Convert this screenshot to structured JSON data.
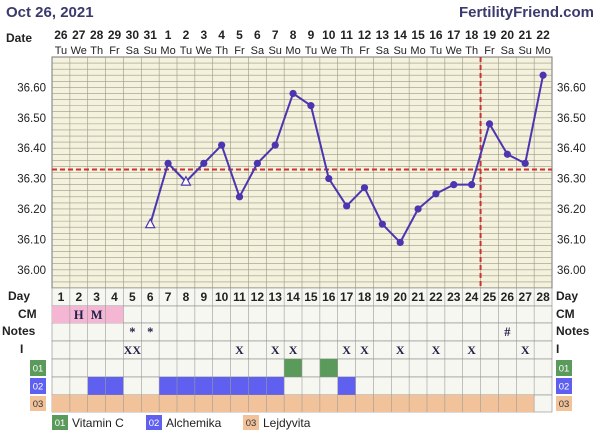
{
  "header": {
    "date": "Oct 26, 2021",
    "site": "FertilityFriend.com",
    "date_label": "Date"
  },
  "row_labels": {
    "day": "Day",
    "cm": "CM",
    "notes": "Notes",
    "i": "I"
  },
  "chart_data": {
    "type": "line",
    "title": "",
    "dates": [
      "26",
      "27",
      "28",
      "29",
      "30",
      "31",
      "1",
      "2",
      "3",
      "4",
      "5",
      "6",
      "7",
      "8",
      "9",
      "10",
      "11",
      "12",
      "13",
      "14",
      "15",
      "16",
      "17",
      "18",
      "19",
      "20",
      "21",
      "22"
    ],
    "weekdays": [
      "Tu",
      "We",
      "Th",
      "Fr",
      "Sa",
      "Su",
      "Mo",
      "Tu",
      "We",
      "Th",
      "Fr",
      "Sa",
      "Su",
      "Mo",
      "Tu",
      "We",
      "Th",
      "Fr",
      "Sa",
      "Su",
      "Mo",
      "Tu",
      "We",
      "Th",
      "Fr",
      "Sa",
      "Su",
      "Mo"
    ],
    "cycle_days": [
      "1",
      "2",
      "3",
      "4",
      "5",
      "6",
      "7",
      "8",
      "9",
      "10",
      "11",
      "12",
      "13",
      "14",
      "15",
      "16",
      "17",
      "18",
      "19",
      "20",
      "21",
      "22",
      "23",
      "24",
      "25",
      "26",
      "27",
      "28"
    ],
    "y_ticks": [
      "36.00",
      "36.10",
      "36.20",
      "36.30",
      "36.40",
      "36.50",
      "36.60"
    ],
    "ylim": [
      35.94,
      36.7
    ],
    "series": [
      {
        "values": [
          null,
          null,
          null,
          null,
          null,
          36.15,
          36.35,
          36.29,
          36.35,
          36.41,
          36.24,
          36.35,
          36.41,
          36.58,
          36.54,
          36.3,
          36.21,
          36.27,
          36.15,
          36.09,
          36.2,
          36.25,
          36.28,
          36.28,
          36.48,
          36.38,
          36.35,
          36.64
        ],
        "open_markers": [
          6,
          8
        ],
        "color": "#4b36b0"
      }
    ],
    "coverline": 36.33,
    "ovulation_day": 24,
    "coverline_color": "#cc3333",
    "grid": true
  },
  "cm_row": [
    "H",
    "M"
  ],
  "cm_pink_days": [
    1,
    2,
    3,
    4
  ],
  "notes_row": {
    "5": "*",
    "6": "*",
    "26": "#"
  },
  "i_row": {
    "5": "XX",
    "11": "X",
    "13": "X",
    "14": "X",
    "17": "X",
    "18": "X",
    "20": "X",
    "22": "X",
    "24": "X",
    "27": "X"
  },
  "supplements": {
    "rows": [
      {
        "id": "01",
        "name": "Vitamin C",
        "color": "#5a9a5a",
        "days": [
          14,
          16
        ]
      },
      {
        "id": "02",
        "name": "Alchemika",
        "color": "#5f5ff0",
        "days": [
          3,
          4,
          7,
          8,
          9,
          10,
          11,
          12,
          13,
          17
        ]
      },
      {
        "id": "03",
        "name": "Lejdyvita",
        "color": "#f2c39a",
        "days": [
          1,
          2,
          3,
          4,
          5,
          6,
          7,
          8,
          9,
          10,
          11,
          12,
          13,
          14,
          15,
          16,
          17,
          18,
          19,
          20,
          21,
          22,
          23,
          24,
          25,
          26,
          27
        ]
      }
    ]
  },
  "colors": {
    "chart_bg": "#f4f1dc",
    "cm_pink": "#f4b6d2",
    "grid": "#9a9a88",
    "row_bg": "#f7f7f2",
    "blank_supp": "#ffffff"
  }
}
